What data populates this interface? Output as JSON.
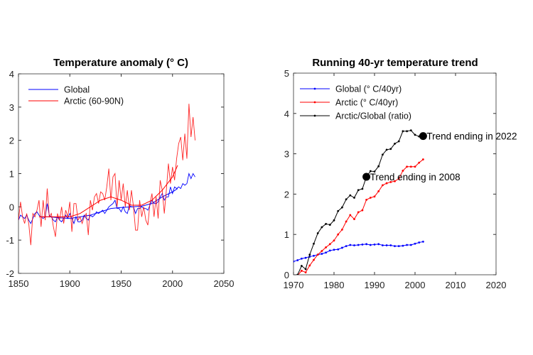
{
  "chart_data": [
    {
      "type": "line",
      "title": "Temperature anomaly (° C)",
      "xlabel": "",
      "ylabel": "",
      "xlim": [
        1850,
        2050
      ],
      "ylim": [
        -2,
        4
      ],
      "xticks": [
        1850,
        1900,
        1950,
        2000,
        2050
      ],
      "yticks": [
        -2,
        -1,
        0,
        1,
        2,
        3,
        4
      ],
      "grid": false,
      "legend_position": "top-left",
      "series": [
        {
          "name": "Global",
          "color": "#0000ff",
          "x_start": 1850,
          "x_step": 2,
          "values": [
            -0.4,
            -0.25,
            -0.3,
            -0.35,
            -0.25,
            -0.4,
            -0.5,
            -0.35,
            -0.2,
            -0.15,
            -0.25,
            -0.3,
            -0.35,
            -0.3,
            0.1,
            -0.25,
            -0.3,
            -0.4,
            -0.45,
            -0.3,
            -0.4,
            -0.45,
            -0.35,
            -0.25,
            -0.35,
            -0.2,
            -0.35,
            -0.5,
            -0.3,
            -0.45,
            -0.45,
            -0.4,
            -0.25,
            -0.35,
            -0.4,
            -0.25,
            -0.3,
            -0.25,
            -0.15,
            -0.2,
            -0.15,
            -0.1,
            -0.2,
            -0.1,
            0.0,
            0.05,
            0.1,
            0.2,
            -0.05,
            -0.05,
            -0.15,
            0.0,
            -0.15,
            -0.2,
            0.05,
            0.0,
            0.0,
            -0.2,
            -0.05,
            -0.05,
            0.0,
            -0.05,
            -0.05,
            -0.1,
            0.05,
            0.2,
            0.1,
            0.1,
            0.15,
            0.3,
            0.4,
            0.2,
            0.3,
            0.3,
            0.6,
            0.4,
            0.6,
            0.55,
            0.6,
            0.55,
            0.7,
            0.65,
            0.7,
            1.0,
            0.85,
            1.0,
            0.9
          ],
          "smoothed": {
            "x": [
              1870,
              1880,
              1890,
              1900,
              1910,
              1920,
              1930,
              1940,
              1950,
              1960,
              1970,
              1980,
              1990,
              2000,
              2005
            ],
            "values": [
              -0.3,
              -0.3,
              -0.33,
              -0.35,
              -0.3,
              -0.25,
              -0.15,
              -0.05,
              -0.02,
              0.0,
              0.02,
              0.1,
              0.3,
              0.45,
              0.55
            ]
          }
        },
        {
          "name": "Arctic (60-90N)",
          "color": "#ff0000",
          "x_start": 1850,
          "x_step": 2,
          "values": [
            -0.4,
            0.15,
            -0.3,
            -0.5,
            -0.2,
            -0.5,
            -1.15,
            -0.2,
            -0.3,
            -0.1,
            0.2,
            -0.6,
            0.2,
            -0.4,
            0.55,
            -0.3,
            -0.2,
            -0.6,
            -0.9,
            -0.2,
            -0.4,
            0.0,
            -0.5,
            -0.1,
            -0.3,
            0.15,
            -0.75,
            0.1,
            0.1,
            -0.4,
            -0.3,
            -0.5,
            -0.3,
            -0.2,
            -0.85,
            0.2,
            -0.1,
            0.3,
            0.4,
            0.1,
            0.45,
            0.4,
            0.2,
            0.6,
            1.15,
            0.2,
            0.9,
            1.0,
            0.0,
            0.8,
            0.2,
            0.7,
            0.0,
            0.5,
            -0.1,
            0.5,
            0.0,
            -0.7,
            -0.7,
            0.2,
            -0.3,
            0.0,
            -0.4,
            -0.55,
            0.1,
            0.4,
            -0.3,
            0.3,
            -0.35,
            0.8,
            0.5,
            -0.2,
            0.5,
            1.3,
            0.7,
            1.2,
            0.8,
            1.45,
            1.9,
            2.1,
            1.4,
            2.2,
            1.45,
            3.1,
            2.1,
            2.7,
            2.0
          ],
          "smoothed": {
            "x": [
              1870,
              1880,
              1890,
              1900,
              1910,
              1920,
              1930,
              1940,
              1950,
              1960,
              1970,
              1980,
              1990,
              2000,
              2005
            ],
            "values": [
              -0.3,
              -0.3,
              -0.3,
              -0.3,
              -0.2,
              0.0,
              0.2,
              0.3,
              0.2,
              0.05,
              0.05,
              0.2,
              0.5,
              0.9,
              1.25
            ]
          }
        }
      ]
    },
    {
      "type": "line",
      "title": "Running 40-yr temperature trend",
      "xlabel": "",
      "ylabel": "",
      "xlim": [
        1970,
        2020
      ],
      "ylim": [
        0,
        5
      ],
      "xticks": [
        1970,
        1980,
        1990,
        2000,
        2010,
        2020
      ],
      "yticks": [
        0,
        1,
        2,
        3,
        4,
        5
      ],
      "grid": false,
      "legend_position": "top-left",
      "series": [
        {
          "name": "Global (° C/40yr)",
          "color": "#0000ff",
          "x_start": 1970,
          "values": [
            0.33,
            0.36,
            0.4,
            0.42,
            0.45,
            0.47,
            0.5,
            0.52,
            0.55,
            0.6,
            0.62,
            0.63,
            0.67,
            0.71,
            0.74,
            0.73,
            0.74,
            0.75,
            0.76,
            0.74,
            0.75,
            0.76,
            0.73,
            0.73,
            0.73,
            0.71,
            0.71,
            0.72,
            0.74,
            0.74,
            0.77,
            0.8,
            0.82
          ]
        },
        {
          "name": "Arctic (° C/40yr)",
          "color": "#ff0000",
          "x_start": 1971,
          "values": [
            -0.02,
            0.1,
            0.06,
            0.23,
            0.37,
            0.5,
            0.59,
            0.68,
            0.76,
            0.85,
            1.0,
            1.12,
            1.32,
            1.48,
            1.38,
            1.55,
            1.6,
            1.86,
            1.91,
            1.94,
            2.07,
            2.22,
            2.27,
            2.3,
            2.32,
            2.38,
            2.58,
            2.68,
            2.68,
            2.68,
            2.78,
            2.86
          ]
        },
        {
          "name": "Arctic/Global (ratio)",
          "color": "#000000",
          "x_start": 1971,
          "values": [
            0.0,
            0.22,
            0.14,
            0.5,
            0.77,
            1.03,
            1.18,
            1.26,
            1.24,
            1.35,
            1.58,
            1.67,
            1.87,
            1.97,
            1.91,
            2.1,
            2.13,
            2.43,
            2.57,
            2.56,
            2.69,
            2.98,
            3.1,
            3.12,
            3.25,
            3.31,
            3.56,
            3.56,
            3.58,
            3.47,
            3.43,
            3.44
          ]
        }
      ],
      "annotations": [
        {
          "x": 1988,
          "y": 2.43,
          "text": "Trend ending in 2008"
        },
        {
          "x": 2002,
          "y": 3.44,
          "text": "Trend ending in 2022"
        }
      ]
    }
  ]
}
